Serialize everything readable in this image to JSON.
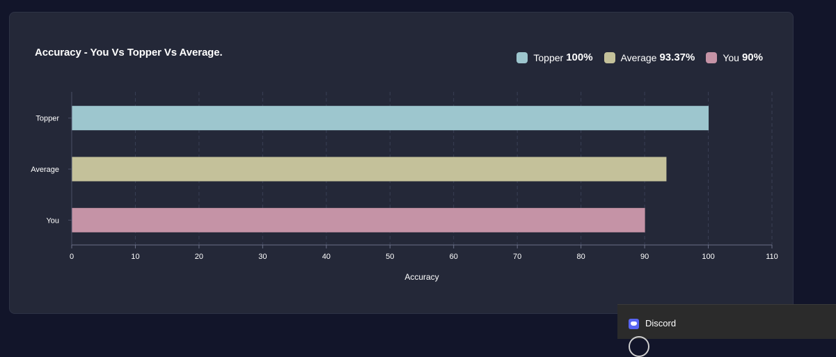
{
  "chart_data": {
    "type": "bar",
    "orientation": "horizontal",
    "title": "Accuracy - You Vs Topper Vs Average.",
    "categories": [
      "Topper",
      "Average",
      "You"
    ],
    "values": [
      100,
      93.37,
      90
    ],
    "colors": [
      "#9dc6ce",
      "#c4c19a",
      "#c593a6"
    ],
    "xlabel": "Accuracy",
    "ylabel": "",
    "xlim": [
      0,
      110
    ],
    "xticks": [
      0,
      10,
      20,
      30,
      40,
      50,
      60,
      70,
      80,
      90,
      100,
      110
    ],
    "grid": true,
    "legend_position": "top-right",
    "legend": [
      {
        "name": "Topper",
        "value_label": "100%",
        "color": "#9dc6ce"
      },
      {
        "name": "Average",
        "value_label": "93.37%",
        "color": "#c4c19a"
      },
      {
        "name": "You",
        "value_label": "90%",
        "color": "#c593a6"
      }
    ]
  },
  "notification": {
    "app_name": "Discord",
    "icon": "discord-icon"
  }
}
